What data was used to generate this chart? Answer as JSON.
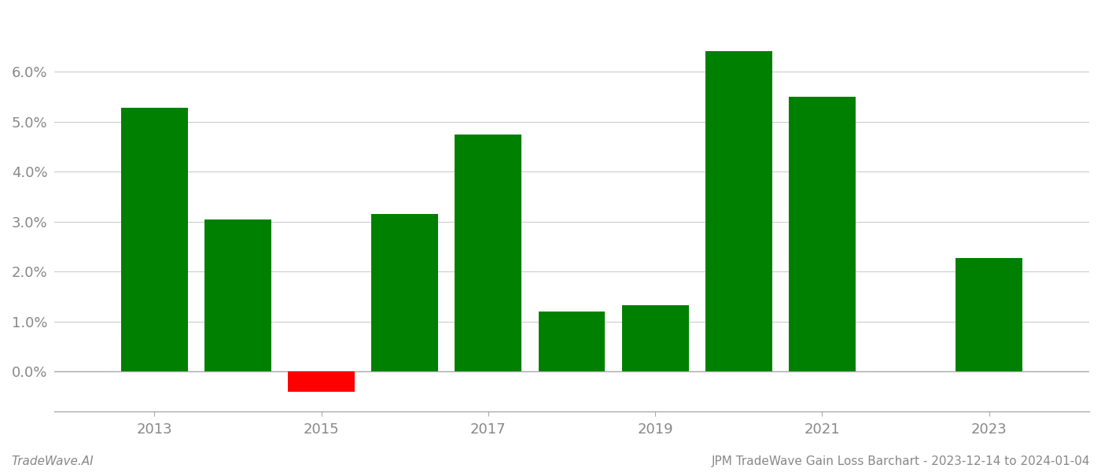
{
  "years": [
    2013,
    2014,
    2015,
    2016,
    2017,
    2018,
    2019,
    2020,
    2021,
    2022,
    2023
  ],
  "values": [
    5.28,
    3.05,
    -0.4,
    3.15,
    4.75,
    1.2,
    1.32,
    6.42,
    5.5,
    0.0,
    2.27
  ],
  "has_bar": [
    true,
    true,
    true,
    true,
    true,
    true,
    true,
    true,
    true,
    false,
    true
  ],
  "colors": [
    "#008000",
    "#008000",
    "#ff0000",
    "#008000",
    "#008000",
    "#008000",
    "#008000",
    "#008000",
    "#008000",
    "#008000",
    "#008000"
  ],
  "footer_left": "TradeWave.AI",
  "footer_right": "JPM TradeWave Gain Loss Barchart - 2023-12-14 to 2024-01-04",
  "ylim": [
    -0.8,
    7.2
  ],
  "background_color": "#ffffff",
  "grid_color": "#cccccc",
  "bar_width": 0.8,
  "xlim_left": 2011.8,
  "xlim_right": 2024.2,
  "xticks": [
    2013,
    2015,
    2017,
    2019,
    2021,
    2023
  ],
  "yticks": [
    0.0,
    1.0,
    2.0,
    3.0,
    4.0,
    5.0,
    6.0
  ],
  "tick_fontsize": 13,
  "footer_fontsize": 11,
  "spine_color": "#aaaaaa",
  "tick_color": "#888888",
  "label_color": "#888888"
}
